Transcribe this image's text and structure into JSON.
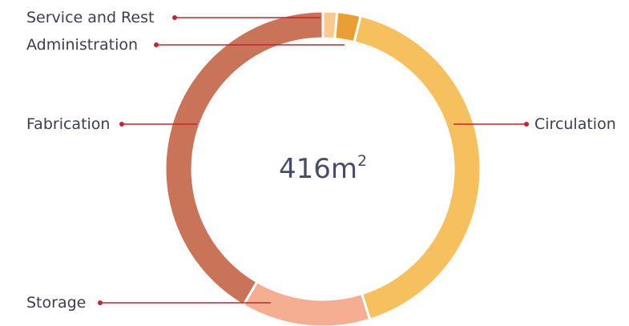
{
  "chart_data": {
    "type": "pie",
    "subtype": "donut",
    "center_value": "416m",
    "center_unit_superscript": "2",
    "categories": [
      "Service and Rest",
      "Administration",
      "Circulation",
      "Storage",
      "Fabrication"
    ],
    "values": [
      6,
      10,
      172,
      55,
      173
    ],
    "unit": "m²",
    "total": 416,
    "colors": [
      "#fbc98e",
      "#e8a034",
      "#f7c05e",
      "#f5ae91",
      "#c97458"
    ],
    "leader_color": "#c4262e",
    "legend": "none"
  }
}
